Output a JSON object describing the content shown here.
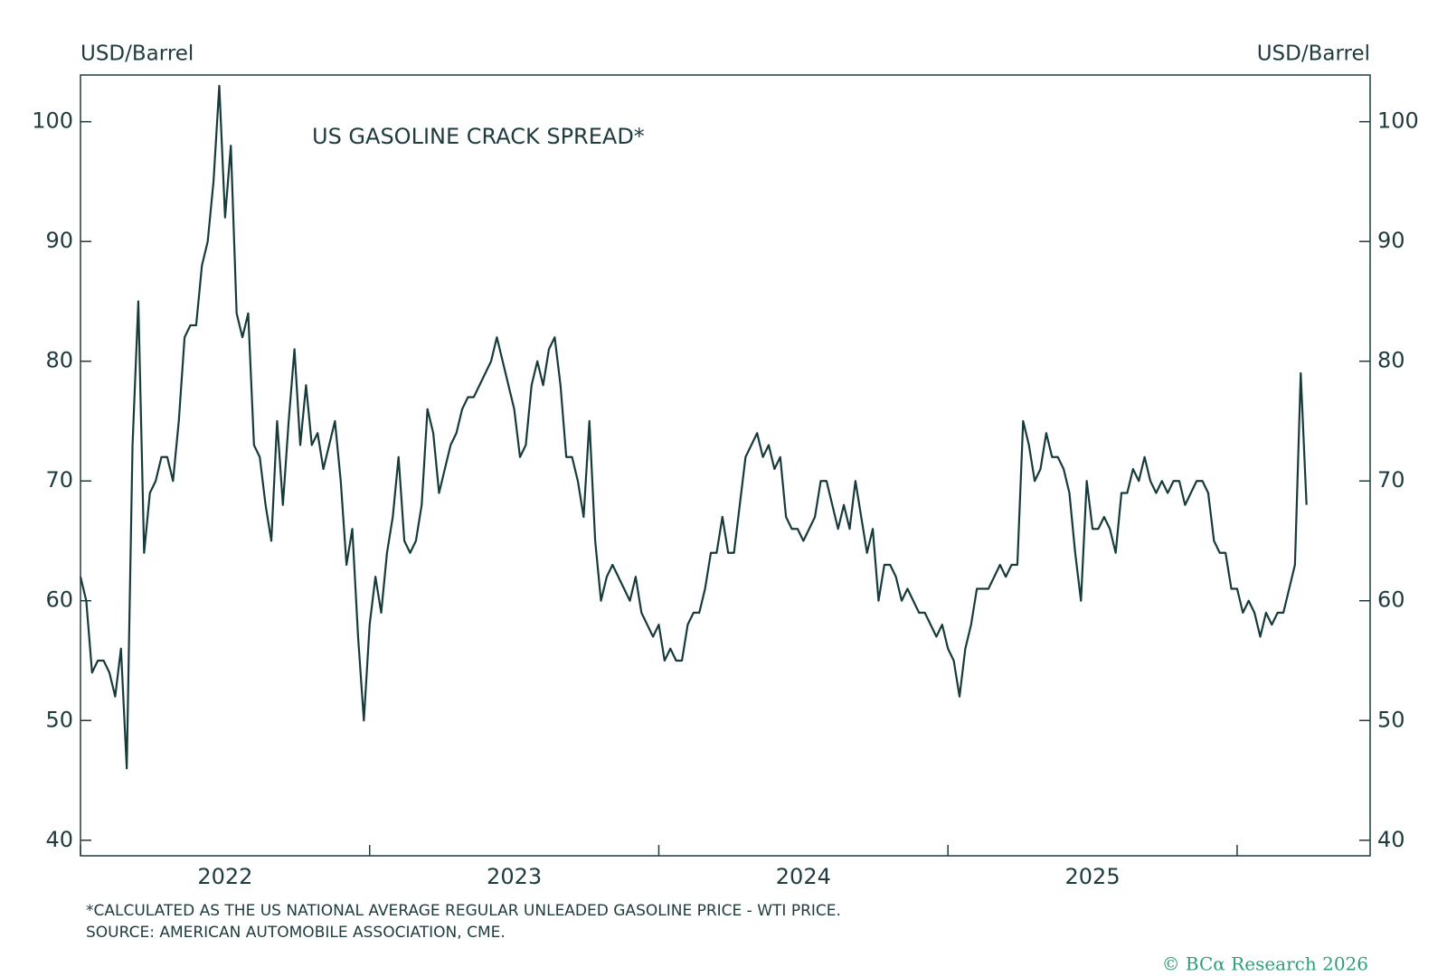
{
  "chart_data": {
    "type": "line",
    "title": "US GASOLINE CRACK SPREAD*",
    "y_label": "USD/Barrel",
    "y2_label": "USD/Barrel",
    "x": [
      2022.0,
      2022.02,
      2022.04,
      2022.06,
      2022.08,
      2022.1,
      2022.12,
      2022.14,
      2022.16,
      2022.18,
      2022.2,
      2022.22,
      2022.24,
      2022.26,
      2022.28,
      2022.3,
      2022.32,
      2022.34,
      2022.36,
      2022.38,
      2022.4,
      2022.42,
      2022.44,
      2022.46,
      2022.48,
      2022.5,
      2022.52,
      2022.54,
      2022.56,
      2022.58,
      2022.6,
      2022.62,
      2022.64,
      2022.66,
      2022.68,
      2022.7,
      2022.72,
      2022.74,
      2022.76,
      2022.78,
      2022.8,
      2022.82,
      2022.84,
      2022.86,
      2022.88,
      2022.9,
      2022.92,
      2022.94,
      2022.96,
      2022.98,
      2023.0,
      2023.02,
      2023.04,
      2023.06,
      2023.08,
      2023.1,
      2023.12,
      2023.14,
      2023.16,
      2023.18,
      2023.2,
      2023.22,
      2023.24,
      2023.26,
      2023.28,
      2023.3,
      2023.32,
      2023.34,
      2023.36,
      2023.38,
      2023.4,
      2023.42,
      2023.44,
      2023.46,
      2023.48,
      2023.5,
      2023.52,
      2023.54,
      2023.56,
      2023.58,
      2023.6,
      2023.62,
      2023.64,
      2023.66,
      2023.68,
      2023.7,
      2023.72,
      2023.74,
      2023.76,
      2023.78,
      2023.8,
      2023.82,
      2023.84,
      2023.86,
      2023.88,
      2023.9,
      2023.92,
      2023.94,
      2023.96,
      2023.98,
      2024.0,
      2024.02,
      2024.04,
      2024.06,
      2024.08,
      2024.1,
      2024.12,
      2024.14,
      2024.16,
      2024.18,
      2024.2,
      2024.22,
      2024.24,
      2024.26,
      2024.28,
      2024.3,
      2024.32,
      2024.34,
      2024.36,
      2024.38,
      2024.4,
      2024.42,
      2024.44,
      2024.46,
      2024.48,
      2024.5,
      2024.52,
      2024.54,
      2024.56,
      2024.58,
      2024.6,
      2024.62,
      2024.64,
      2024.66,
      2024.68,
      2024.7,
      2024.72,
      2024.74,
      2024.76,
      2024.78,
      2024.8,
      2024.82,
      2024.84,
      2024.86,
      2024.88,
      2024.9,
      2024.92,
      2024.94,
      2024.96,
      2024.98,
      2025.0,
      2025.02,
      2025.04,
      2025.06,
      2025.08,
      2025.1,
      2025.12,
      2025.14,
      2025.16,
      2025.18,
      2025.2,
      2025.22,
      2025.24,
      2025.26,
      2025.28,
      2025.3,
      2025.32,
      2025.34,
      2025.36,
      2025.38,
      2025.4,
      2025.42,
      2025.44,
      2025.46,
      2025.48,
      2025.5,
      2025.52,
      2025.54,
      2025.56,
      2025.58,
      2025.6,
      2025.62,
      2025.64,
      2025.66,
      2025.68,
      2025.7,
      2025.72,
      2025.74,
      2025.76,
      2025.78,
      2025.8,
      2025.82,
      2025.84,
      2025.86,
      2025.88,
      2025.9,
      2025.92,
      2025.94,
      2025.96,
      2025.98,
      2026.0,
      2026.02,
      2026.04,
      2026.06,
      2026.08,
      2026.1,
      2026.12,
      2026.14,
      2026.16,
      2026.18,
      2026.2,
      2026.22,
      2026.24
    ],
    "series": [
      {
        "name": "US Gasoline Crack Spread",
        "color": "#173a3a",
        "values": [
          62,
          60,
          54,
          55,
          55,
          54,
          52,
          56,
          46,
          73,
          85,
          64,
          69,
          70,
          72,
          72,
          70,
          75,
          82,
          83,
          83,
          88,
          90,
          95,
          103,
          92,
          98,
          84,
          82,
          84,
          73,
          72,
          68,
          65,
          75,
          68,
          75,
          81,
          73,
          78,
          73,
          74,
          71,
          73,
          75,
          70,
          63,
          66,
          57,
          50,
          58,
          62,
          59,
          64,
          67,
          72,
          65,
          64,
          65,
          68,
          76,
          74,
          69,
          71,
          73,
          74,
          76,
          77,
          77,
          78,
          79,
          80,
          82,
          80,
          78,
          76,
          72,
          73,
          78,
          80,
          78,
          81,
          82,
          78,
          72,
          72,
          70,
          67,
          75,
          65,
          60,
          62,
          63,
          62,
          61,
          60,
          62,
          59,
          58,
          57,
          58,
          55,
          56,
          55,
          55,
          58,
          59,
          59,
          61,
          64,
          64,
          67,
          64,
          64,
          68,
          72,
          73,
          74,
          72,
          73,
          71,
          72,
          67,
          66,
          66,
          65,
          66,
          67,
          70,
          70,
          68,
          66,
          68,
          66,
          70,
          67,
          64,
          66,
          60,
          63,
          63,
          62,
          60,
          61,
          60,
          59,
          59,
          58,
          57,
          58,
          56,
          55,
          52,
          56,
          58,
          61,
          61,
          61,
          62,
          63,
          62,
          63,
          63,
          75,
          73,
          70,
          71,
          74,
          72,
          72,
          71,
          69,
          64,
          60,
          70,
          66,
          66,
          67,
          66,
          64,
          69,
          69,
          71,
          70,
          72,
          70,
          69,
          70,
          69,
          70,
          70,
          68,
          69,
          70,
          70,
          69,
          65,
          64,
          64,
          61,
          61,
          59,
          60,
          59,
          57,
          59,
          58,
          59,
          59,
          61,
          63,
          79,
          68
        ]
      }
    ],
    "xlim": [
      2022,
      2026.46
    ],
    "xticks": [
      2022,
      2023,
      2024,
      2025,
      2026
    ],
    "xlabels": [
      2022,
      2023,
      2024,
      2025
    ],
    "ylim": [
      38.7,
      103.9
    ],
    "yticks": [
      40,
      50,
      60,
      70,
      80,
      90,
      100
    ],
    "y2lim": [
      38.7,
      103.9
    ],
    "y2ticks": [
      40,
      50,
      60,
      70,
      80,
      90,
      100
    ],
    "footnotes": [
      "*CALCULATED AS THE US NATIONAL AVERAGE REGULAR UNLEADED GASOLINE PRICE - WTI PRICE.",
      "SOURCE: AMERICAN AUTOMOBILE ASSOCIATION, CME."
    ],
    "credit": "© BCα Research 2026"
  }
}
